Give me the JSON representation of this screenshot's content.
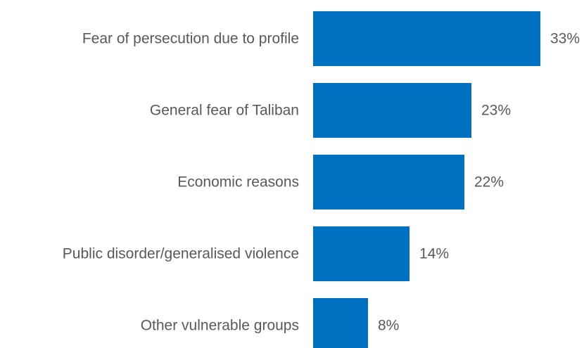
{
  "chart_data": {
    "type": "bar",
    "orientation": "horizontal",
    "categories": [
      "Fear of persecution due to profile",
      "General fear of Taliban",
      "Economic reasons",
      "Public disorder/generalised violence",
      "Other vulnerable groups"
    ],
    "values": [
      33,
      23,
      22,
      14,
      8
    ],
    "value_labels": [
      "33%",
      "23%",
      "22%",
      "14%",
      "8%"
    ],
    "unit": "%",
    "title": "",
    "xlabel": "",
    "ylabel": "",
    "xlim": [
      0,
      33
    ],
    "grid": false,
    "legend": "none",
    "colors": {
      "bar": "#0070C0",
      "text": "#595959",
      "background": "#FFFFFF"
    }
  }
}
